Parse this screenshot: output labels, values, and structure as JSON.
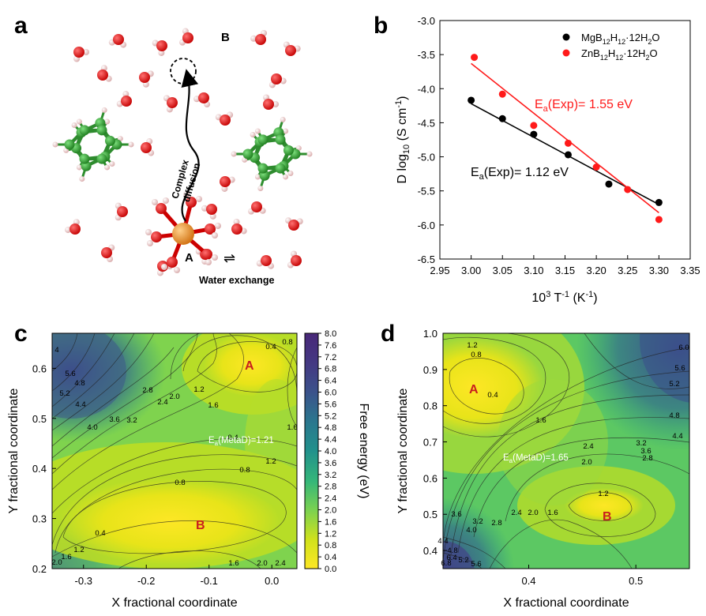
{
  "panels": {
    "a": {
      "letter": "a",
      "site_a": "A",
      "site_b": "B",
      "path_label_line1": "Complex",
      "path_label_line2": "diffusion",
      "exchange_label": "Water exchange",
      "exchange_symbol": "⇌"
    },
    "b": {
      "letter": "b"
    },
    "c": {
      "letter": "c"
    },
    "d": {
      "letter": "d"
    }
  },
  "chart_data": [
    {
      "panel": "b",
      "type": "scatter",
      "xlabel_main": "10",
      "xlabel_sup1": "3",
      "xlabel_mid": " T",
      "xlabel_sup2": "-1",
      "xlabel_end": " (K",
      "xlabel_sup3": "-1",
      "xlabel_close": ")",
      "ylabel_main": "D log",
      "ylabel_sub": "10",
      "ylabel_end": " (S cm",
      "ylabel_sup": "-1",
      "ylabel_close": ")",
      "xlim": [
        2.95,
        3.35
      ],
      "ylim": [
        -6.5,
        -3.0
      ],
      "xticks": [
        "2.95",
        "3.00",
        "3.05",
        "3.10",
        "3.15",
        "3.20",
        "3.25",
        "3.30",
        "3.35"
      ],
      "yticks": [
        "-3.0",
        "-3.5",
        "-4.0",
        "-4.5",
        "-5.0",
        "-5.5",
        "-6.0",
        "-6.5"
      ],
      "series": [
        {
          "name": "MgB12H12·12H2O",
          "legend_parts": [
            "MgB",
            "12",
            "H",
            "12",
            "·12H",
            "2",
            "O"
          ],
          "color": "#000000",
          "x": [
            3.0,
            3.05,
            3.1,
            3.155,
            3.22,
            3.3
          ],
          "y": [
            -4.17,
            -4.44,
            -4.67,
            -4.97,
            -5.4,
            -5.67
          ],
          "fit": {
            "x": [
              3.0,
              3.3
            ],
            "y": [
              -4.22,
              -5.7
            ]
          },
          "annotation_main": "E",
          "annotation_sub": "a",
          "annotation_rest": "(Exp)= 1.12 eV"
        },
        {
          "name": "ZnB12H12·12H2O",
          "legend_parts": [
            "ZnB",
            "12",
            "H",
            "12",
            "·12H",
            "2",
            "O"
          ],
          "color": "#ff1a1a",
          "x": [
            3.005,
            3.05,
            3.1,
            3.155,
            3.2,
            3.25,
            3.3
          ],
          "y": [
            -3.54,
            -4.08,
            -4.54,
            -4.8,
            -5.15,
            -5.48,
            -5.92
          ],
          "fit": {
            "x": [
              3.0,
              3.3
            ],
            "y": [
              -3.63,
              -5.82
            ]
          },
          "annotation_main": "E",
          "annotation_sub": "a",
          "annotation_rest": "(Exp)= 1.55 eV"
        }
      ]
    },
    {
      "panel": "c",
      "type": "heatmap",
      "xlabel": "X fractional coordinate",
      "ylabel": "Y fractional coordinate",
      "xlim": [
        -0.35,
        0.04
      ],
      "ylim": [
        0.2,
        0.67
      ],
      "xticks": [
        "-0.3",
        "-0.2",
        "-0.1",
        "0.0"
      ],
      "yticks": [
        "0.2",
        "0.3",
        "0.4",
        "0.5",
        "0.6"
      ],
      "minima": [
        {
          "label": "A",
          "x": -0.04,
          "y": 0.615
        },
        {
          "label": "B",
          "x": -0.13,
          "y": 0.29
        }
      ],
      "barrier_main": "E",
      "barrier_sub": "a",
      "barrier_rest": "(MetaD)=1.21",
      "contour_labels": [
        "0.4",
        "0.8",
        "0.4",
        "0.8",
        "1.2",
        "1.6",
        "2.0",
        "2.4",
        "2.8",
        "3.2",
        "3.6",
        "4.0",
        "4.4",
        "4.8",
        "5.2",
        "5.6",
        "4",
        "1.6",
        "1.2",
        "0.8",
        "0.4",
        "1.2",
        "1.6",
        "2.0",
        "1.6",
        "2.0",
        "2.4"
      ],
      "colorbar": {
        "title": "Free energy (eV)",
        "min": 0.0,
        "max": 8.0,
        "ticks": [
          "8.0",
          "7.6",
          "7.2",
          "6.8",
          "6.4",
          "6.0",
          "5.6",
          "5.2",
          "4.8",
          "4.4",
          "4.0",
          "3.6",
          "3.2",
          "2.8",
          "2.4",
          "2.0",
          "1.6",
          "1.2",
          "0.8",
          "0.4",
          "0.0"
        ]
      }
    },
    {
      "panel": "d",
      "type": "heatmap",
      "xlabel": "X fractional coordinate",
      "ylabel": "Y fractional coordinate",
      "xlim": [
        0.32,
        0.55
      ],
      "ylim": [
        0.35,
        1.0
      ],
      "xticks": [
        "0.4",
        "0.5"
      ],
      "yticks": [
        "0.4",
        "0.5",
        "0.6",
        "0.7",
        "0.8",
        "0.9",
        "1.0"
      ],
      "minima": [
        {
          "label": "A",
          "x": 0.35,
          "y": 0.84
        },
        {
          "label": "B",
          "x": 0.475,
          "y": 0.5
        }
      ],
      "barrier_main": "E",
      "barrier_sub": "a",
      "barrier_rest": "(MetaD)=1.65",
      "contour_labels": [
        "1.2",
        "0.8",
        "0.4",
        "1.6",
        "2.4",
        "2.0",
        "2.8",
        "3.2",
        "3.6",
        "4.4",
        "4.8",
        "5.2",
        "5.6",
        "6.0",
        "1.2",
        "1.6",
        "2.0",
        "2.4",
        "2.8",
        "3.2",
        "3.6",
        "4.0",
        "4.4",
        "4.8",
        "5.2",
        "5.6",
        "6.4",
        "6.8"
      ]
    }
  ]
}
